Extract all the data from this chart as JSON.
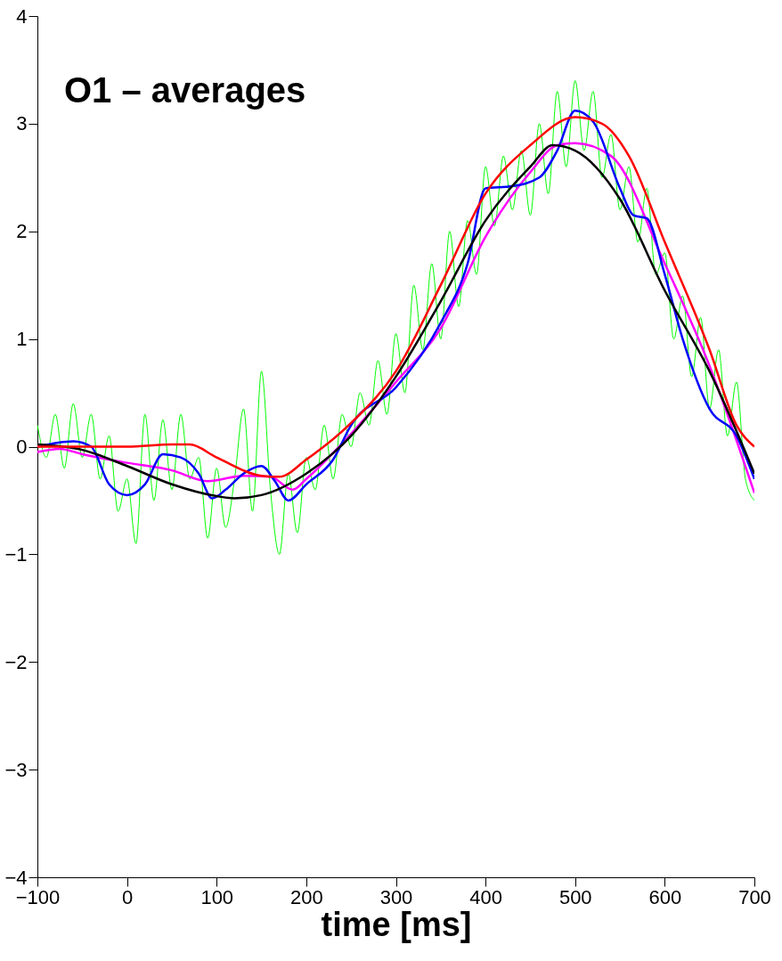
{
  "chart_data": {
    "type": "line",
    "xlabel": "time [ms]",
    "annotations": [
      "O1 – averages"
    ],
    "xlim": [
      -100,
      700
    ],
    "xticks": [
      -100,
      0,
      100,
      200,
      300,
      400,
      500,
      600,
      700
    ],
    "ylim": [
      -4,
      4
    ],
    "yticks": [
      -4,
      -3,
      -2,
      -1,
      0,
      1,
      2,
      3,
      4
    ],
    "grid": false,
    "marker": "none",
    "line_style": "solid",
    "series": [
      {
        "color": "#00ff00",
        "x": [
          -100,
          -90,
          -80,
          -70,
          -60,
          -50,
          -40,
          -30,
          -20,
          -10,
          0,
          10,
          20,
          30,
          40,
          50,
          60,
          70,
          80,
          90,
          100,
          110,
          120,
          130,
          140,
          150,
          160,
          170,
          180,
          190,
          200,
          210,
          220,
          230,
          240,
          250,
          260,
          270,
          280,
          290,
          300,
          310,
          320,
          330,
          340,
          350,
          360,
          370,
          380,
          390,
          400,
          410,
          420,
          430,
          440,
          450,
          460,
          470,
          480,
          490,
          500,
          510,
          520,
          530,
          540,
          550,
          560,
          570,
          580,
          590,
          600,
          610,
          620,
          630,
          640,
          650,
          660,
          670,
          680,
          690,
          700
        ],
        "values": [
          0.2,
          -0.1,
          0.3,
          -0.2,
          0.4,
          -0.1,
          0.3,
          -0.3,
          0.1,
          -0.6,
          -0.3,
          -0.9,
          0.3,
          -0.5,
          0.25,
          -0.4,
          0.3,
          -0.3,
          -0.1,
          -0.85,
          -0.2,
          -0.75,
          -0.3,
          0.35,
          -0.6,
          0.7,
          -0.4,
          -1.0,
          -0.25,
          -0.8,
          -0.1,
          -0.4,
          0.2,
          -0.3,
          0.3,
          0.0,
          0.5,
          0.2,
          0.8,
          0.3,
          1.05,
          0.5,
          1.5,
          0.9,
          1.7,
          1.0,
          2.0,
          1.3,
          2.1,
          1.6,
          2.6,
          2.05,
          2.7,
          2.2,
          2.75,
          2.15,
          3.0,
          2.35,
          3.3,
          2.6,
          3.4,
          2.75,
          3.3,
          2.5,
          2.9,
          2.2,
          2.6,
          1.9,
          2.4,
          1.6,
          1.8,
          1.0,
          1.4,
          0.65,
          1.2,
          0.35,
          0.9,
          0.1,
          0.6,
          -0.3,
          -0.5
        ]
      },
      {
        "color": "#ff00ff",
        "x": [
          -100,
          -75,
          -50,
          0,
          50,
          90,
          130,
          160,
          185,
          200,
          250,
          300,
          350,
          400,
          450,
          480,
          500,
          540,
          600,
          650,
          700
        ],
        "values": [
          -0.05,
          -0.02,
          -0.07,
          -0.15,
          -0.22,
          -0.32,
          -0.27,
          -0.28,
          -0.4,
          -0.3,
          0.12,
          0.6,
          1.1,
          1.95,
          2.55,
          2.8,
          2.82,
          2.7,
          1.7,
          0.75,
          -0.43
        ]
      },
      {
        "color": "#0000ff",
        "x": [
          -100,
          -60,
          -40,
          -20,
          0,
          20,
          40,
          60,
          80,
          95,
          110,
          130,
          150,
          165,
          180,
          200,
          230,
          250,
          300,
          350,
          380,
          400,
          430,
          460,
          480,
          500,
          520,
          550,
          565,
          580,
          600,
          620,
          650,
          680,
          700
        ],
        "values": [
          0.0,
          0.05,
          0.0,
          -0.35,
          -0.45,
          -0.35,
          -0.07,
          -0.1,
          -0.25,
          -0.48,
          -0.4,
          -0.25,
          -0.18,
          -0.32,
          -0.5,
          -0.35,
          -0.12,
          0.2,
          0.55,
          1.15,
          1.7,
          2.4,
          2.42,
          2.5,
          2.75,
          3.12,
          3.02,
          2.4,
          2.15,
          2.12,
          1.6,
          1.0,
          0.35,
          0.1,
          -0.3
        ]
      },
      {
        "color": "#000000",
        "x": [
          -100,
          -50,
          0,
          50,
          100,
          120,
          150,
          200,
          250,
          300,
          350,
          400,
          450,
          475,
          500,
          550,
          600,
          650,
          700
        ],
        "values": [
          0.02,
          -0.03,
          -0.18,
          -0.35,
          -0.46,
          -0.48,
          -0.45,
          -0.25,
          0.1,
          0.65,
          1.35,
          2.1,
          2.6,
          2.8,
          2.75,
          2.3,
          1.45,
          0.7,
          -0.25
        ]
      },
      {
        "color": "#ff0000",
        "x": [
          -100,
          0,
          50,
          70,
          100,
          150,
          170,
          200,
          250,
          300,
          350,
          400,
          450,
          500,
          530,
          560,
          600,
          650,
          680,
          700
        ],
        "values": [
          0.0,
          0.0,
          0.02,
          0.02,
          -0.1,
          -0.27,
          -0.28,
          -0.12,
          0.22,
          0.7,
          1.5,
          2.35,
          2.8,
          3.06,
          3.0,
          2.7,
          1.9,
          0.9,
          0.2,
          0.0
        ]
      }
    ]
  }
}
